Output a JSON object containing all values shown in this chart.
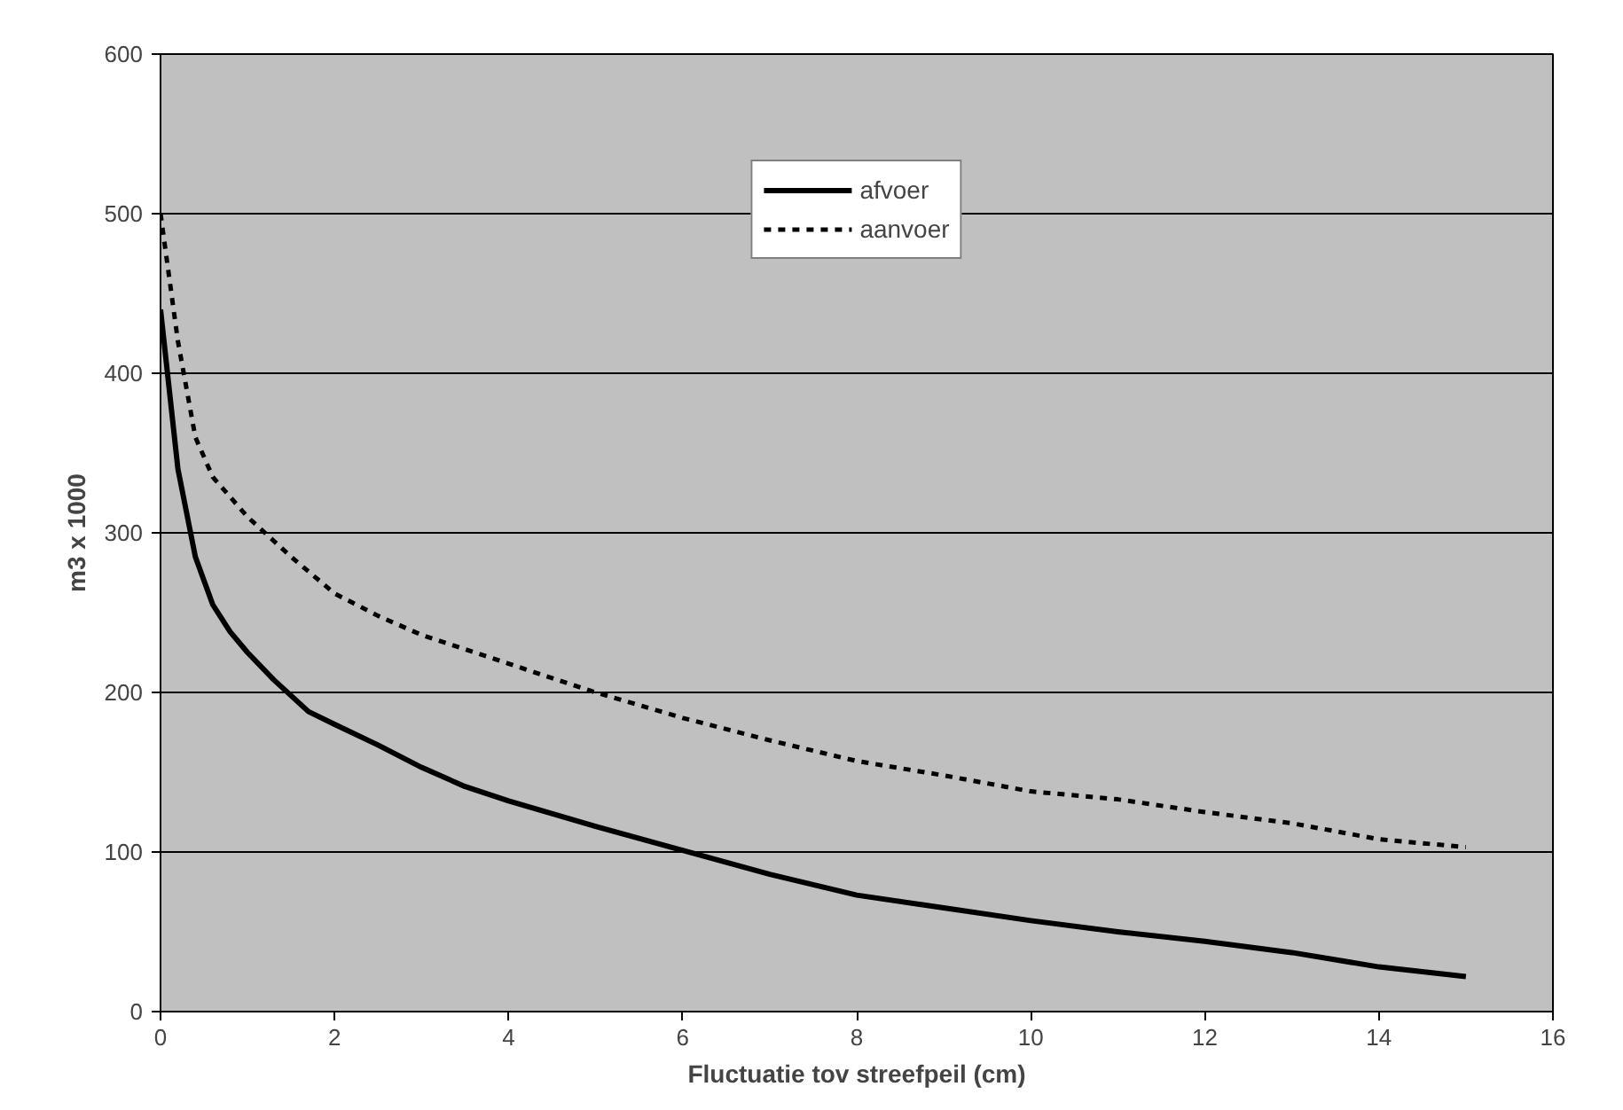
{
  "chart_data": {
    "type": "line",
    "xlabel": "Fluctuatie tov streefpeil (cm)",
    "ylabel": "m3 x 1000",
    "xlim": [
      0,
      16
    ],
    "xticks": [
      0,
      2,
      4,
      6,
      8,
      10,
      12,
      14,
      16
    ],
    "ylim": [
      0,
      600
    ],
    "yticks": [
      0,
      100,
      200,
      300,
      400,
      500,
      600
    ],
    "grid": "y",
    "legend": "top",
    "marker": "none",
    "series": [
      {
        "name": "afvoer",
        "color": "#000000",
        "line_style": "solid",
        "x": [
          0,
          0.2,
          0.4,
          0.6,
          0.8,
          1,
          1.3,
          1.7,
          2,
          2.5,
          3,
          3.5,
          4,
          5,
          6,
          7,
          8,
          9,
          10,
          11,
          12,
          13,
          14,
          15
        ],
        "values": [
          440,
          340,
          285,
          255,
          238,
          225,
          208,
          188,
          180,
          167,
          153,
          141,
          132,
          116,
          101,
          86,
          73,
          65,
          57,
          50,
          44,
          37,
          28,
          22
        ]
      },
      {
        "name": "aanvoer",
        "color": "#000000",
        "line_style": "dashed",
        "x": [
          0,
          0.2,
          0.4,
          0.6,
          1,
          1.5,
          2,
          2.5,
          3,
          4,
          5,
          6,
          7,
          8,
          9,
          10,
          11,
          12,
          13,
          14,
          15
        ],
        "values": [
          500,
          420,
          360,
          335,
          310,
          285,
          262,
          248,
          236,
          218,
          200,
          184,
          170,
          157,
          148,
          138,
          133,
          125,
          118,
          108,
          103
        ]
      }
    ]
  }
}
